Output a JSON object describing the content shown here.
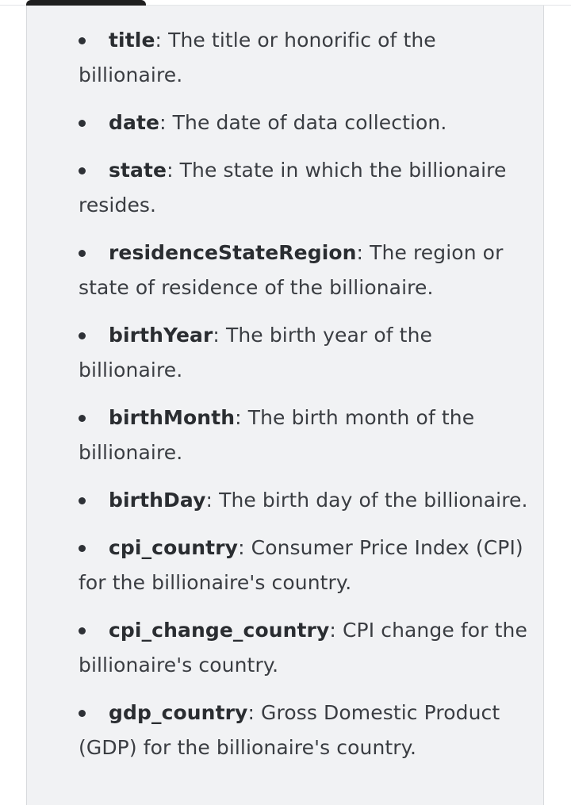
{
  "fields": [
    {
      "name": "title",
      "sep": ":",
      "desc": " The title or honorific of the billionaire."
    },
    {
      "name": "date",
      "sep": ":",
      "desc": " The date of data collection."
    },
    {
      "name": "state",
      "sep": ":",
      "desc": " The state in which the billionaire resides."
    },
    {
      "name": "residenceStateRegion",
      "sep": ":",
      "desc": " The region or state of residence of the billionaire."
    },
    {
      "name": "birthYear",
      "sep": ":",
      "desc": " The birth year of the billionaire."
    },
    {
      "name": "birthMonth",
      "sep": ":",
      "desc": " The birth month of the billionaire."
    },
    {
      "name": "birthDay",
      "sep": ":",
      "desc": " The birth day of the billionaire."
    },
    {
      "name": "cpi_country",
      "sep": ":",
      "desc": " Consumer Price Index (CPI) for the billionaire's country."
    },
    {
      "name": "cpi_change_country",
      "sep": ":",
      "desc": " CPI change for the billionaire's country."
    },
    {
      "name": "gdp_country",
      "sep": ":",
      "desc": " Gross Domestic Product (GDP) for the billionaire's country."
    }
  ]
}
